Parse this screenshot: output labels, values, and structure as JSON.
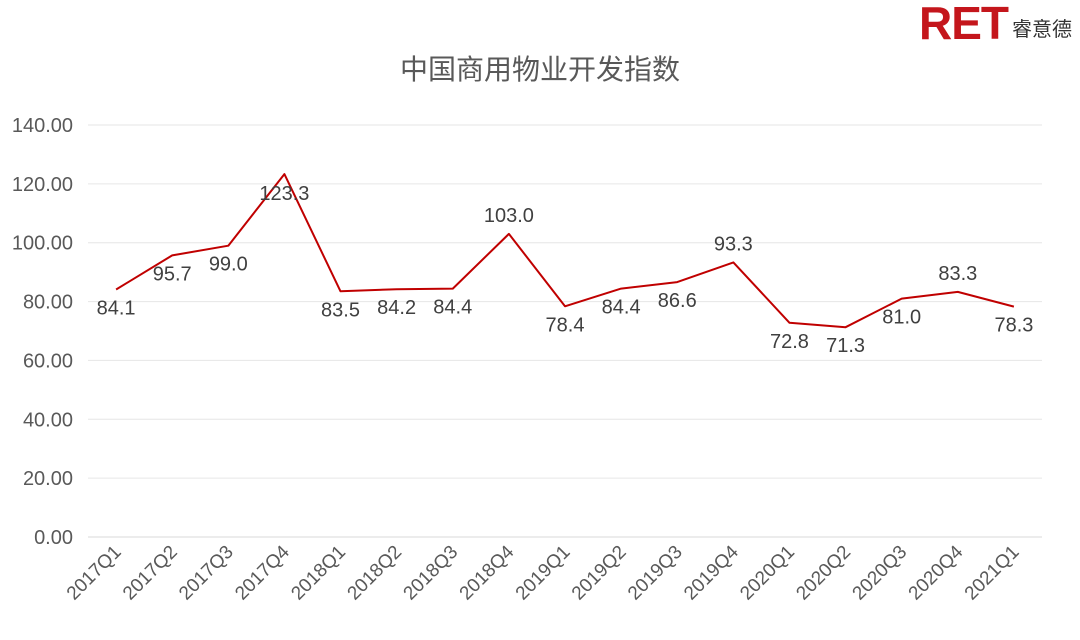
{
  "logo": {
    "mark": "RET",
    "name": "睿意德"
  },
  "colors": {
    "line": "#c00000",
    "brand": "#c4161c",
    "grid": "#e6e6e6"
  },
  "chart_data": {
    "type": "line",
    "title": "中国商用物业开发指数",
    "xlabel": "",
    "ylabel": "",
    "ylim": [
      0,
      140
    ],
    "yticks": [
      "0.00",
      "20.00",
      "40.00",
      "60.00",
      "80.00",
      "100.00",
      "120.00",
      "140.00"
    ],
    "grid": true,
    "categories": [
      "2017Q1",
      "2017Q2",
      "2017Q3",
      "2017Q4",
      "2018Q1",
      "2018Q2",
      "2018Q3",
      "2018Q4",
      "2019Q1",
      "2019Q2",
      "2019Q3",
      "2019Q4",
      "2020Q1",
      "2020Q2",
      "2020Q3",
      "2020Q4",
      "2021Q1"
    ],
    "series": [
      {
        "values": [
          84.1,
          95.7,
          99.0,
          123.3,
          83.5,
          84.2,
          84.4,
          103.0,
          78.4,
          84.4,
          86.6,
          93.3,
          72.8,
          71.3,
          81.0,
          83.3,
          78.3
        ],
        "labels": [
          "84.1",
          "95.7",
          "99.0",
          "123.3",
          "83.5",
          "84.2",
          "84.4",
          "103.0",
          "78.4",
          "84.4",
          "86.6",
          "93.3",
          "72.8",
          "71.3",
          "81.0",
          "83.3",
          "78.3"
        ]
      }
    ]
  }
}
